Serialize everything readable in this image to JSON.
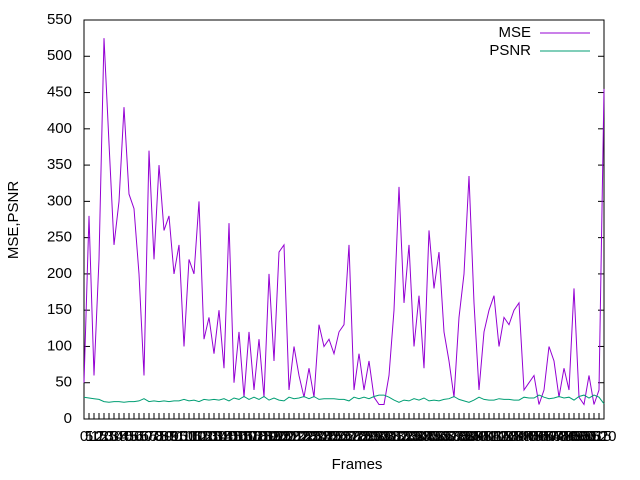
{
  "chart_data": {
    "type": "line",
    "xlabel": "Frames",
    "ylabel": "MSE,PSNR",
    "categories": [
      "0",
      "5",
      "10",
      "15",
      "20",
      "25",
      "30",
      "35",
      "40",
      "45",
      "50",
      "55",
      "60",
      "65",
      "70",
      "75",
      "80",
      "85",
      "90",
      "95",
      "100",
      "105",
      "110",
      "115",
      "120",
      "125",
      "130",
      "135",
      "140",
      "145",
      "150",
      "155",
      "160",
      "165",
      "170",
      "175",
      "180",
      "185",
      "190",
      "195",
      "200",
      "205",
      "210",
      "215",
      "220",
      "225",
      "230",
      "235",
      "240",
      "245",
      "250",
      "255",
      "260",
      "265",
      "270",
      "275",
      "280",
      "285",
      "290",
      "295",
      "300",
      "305",
      "310",
      "315",
      "320",
      "325",
      "330",
      "335",
      "340",
      "345",
      "350",
      "355",
      "360",
      "365",
      "370",
      "375",
      "380",
      "385",
      "390",
      "395",
      "400",
      "405",
      "410",
      "415",
      "420",
      "425",
      "430",
      "435",
      "440",
      "445",
      "450",
      "455",
      "460",
      "465",
      "470",
      "475",
      "480",
      "485",
      "490",
      "495",
      "500",
      "505",
      "510",
      "515",
      "520"
    ],
    "series": [
      {
        "name": "MSE",
        "color": "#9400d3",
        "values": [
          50,
          280,
          60,
          220,
          525,
          380,
          240,
          300,
          430,
          310,
          290,
          200,
          60,
          370,
          220,
          350,
          260,
          280,
          200,
          240,
          100,
          220,
          200,
          300,
          110,
          140,
          90,
          150,
          70,
          270,
          50,
          120,
          30,
          120,
          40,
          110,
          30,
          200,
          80,
          230,
          240,
          40,
          100,
          60,
          30,
          70,
          30,
          130,
          100,
          110,
          90,
          120,
          130,
          240,
          40,
          90,
          40,
          80,
          30,
          20,
          20,
          60,
          150,
          320,
          160,
          240,
          100,
          170,
          70,
          260,
          180,
          230,
          120,
          80,
          30,
          140,
          200,
          335,
          160,
          40,
          120,
          150,
          170,
          100,
          140,
          130,
          150,
          160,
          40,
          50,
          60,
          20,
          40,
          100,
          80,
          30,
          70,
          40,
          180,
          30,
          20,
          60,
          20,
          40,
          455
        ]
      },
      {
        "name": "PSNR",
        "color": "#009e73",
        "values": [
          30,
          29,
          28,
          27,
          24,
          23,
          24,
          24,
          23,
          24,
          24,
          25,
          28,
          24,
          25,
          24,
          25,
          24,
          25,
          25,
          27,
          25,
          26,
          24,
          27,
          26,
          27,
          26,
          28,
          25,
          29,
          27,
          31,
          27,
          30,
          27,
          31,
          26,
          29,
          26,
          25,
          30,
          28,
          29,
          31,
          28,
          31,
          27,
          28,
          28,
          28,
          27,
          27,
          25,
          30,
          28,
          30,
          28,
          31,
          33,
          33,
          30,
          26,
          23,
          26,
          25,
          28,
          26,
          29,
          25,
          26,
          25,
          27,
          28,
          31,
          27,
          25,
          23,
          26,
          30,
          27,
          26,
          26,
          28,
          27,
          27,
          26,
          26,
          30,
          29,
          29,
          33,
          30,
          28,
          29,
          31,
          29,
          30,
          26,
          31,
          33,
          29,
          33,
          30,
          21
        ]
      }
    ],
    "ylim": [
      0,
      550
    ],
    "yticks": [
      0,
      50,
      100,
      150,
      200,
      250,
      300,
      350,
      400,
      450,
      500,
      550
    ],
    "legend": "upper-right"
  }
}
